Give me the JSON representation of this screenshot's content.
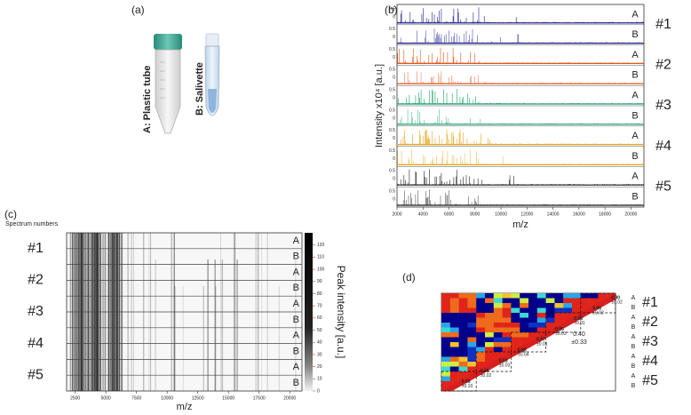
{
  "panels": {
    "a": {
      "label": "(a)",
      "tube_a": "A: Plastic tube",
      "tube_b": "B: Salivette"
    },
    "b": {
      "label": "(b)",
      "y_label": "Intensity x10⁴ [a.u.]",
      "x_label": "m/z",
      "xlim": [
        2000,
        21000
      ],
      "xticks": [
        2000,
        4000,
        6000,
        8000,
        10000,
        12000,
        14000,
        16000,
        18000,
        20000
      ],
      "strip_yticks": [
        "0.5",
        "0"
      ],
      "sample_labels": [
        "A",
        "B"
      ],
      "groups": [
        "#1",
        "#2",
        "#3",
        "#4",
        "#5"
      ],
      "colors": [
        "#1a1a8c",
        "#e0541b",
        "#1aa36a",
        "#e8a51a",
        "#222222"
      ]
    },
    "c": {
      "label": "(c)",
      "y_label": "Spectrum numbers",
      "x_label": "m/z",
      "xlim": [
        1800,
        21000
      ],
      "xticks": [
        2500,
        5000,
        7500,
        10000,
        12500,
        15000,
        17500,
        20000
      ],
      "colorbar_label": "Peak intensity [a.u.]",
      "colorbar_lim": [
        0,
        130
      ],
      "colorbar_ticks": [
        0,
        10,
        20,
        30,
        40,
        50,
        60,
        70,
        80,
        90,
        100,
        110,
        120
      ],
      "sample_labels": [
        "A",
        "B"
      ],
      "groups": [
        "#1",
        "#2",
        "#3",
        "#4",
        "#5"
      ]
    },
    "d": {
      "label": "(d)",
      "mean": "0.40",
      "sd": "±0.33",
      "diag_means": [
        "0.90",
        "0.96",
        "0.98",
        "0.95",
        "0.97",
        "0.88",
        "0.93",
        "0.96",
        "0.99"
      ],
      "diag_sds": [
        "±0.02",
        "±0.02",
        "±0.01",
        "±0.03",
        "±0.01",
        "±0.04",
        "±0.03",
        "±0.02",
        "±0.10"
      ],
      "sample_labels": [
        "A",
        "B"
      ],
      "groups": [
        "#1",
        "#2",
        "#3",
        "#4",
        "#5"
      ]
    }
  }
}
